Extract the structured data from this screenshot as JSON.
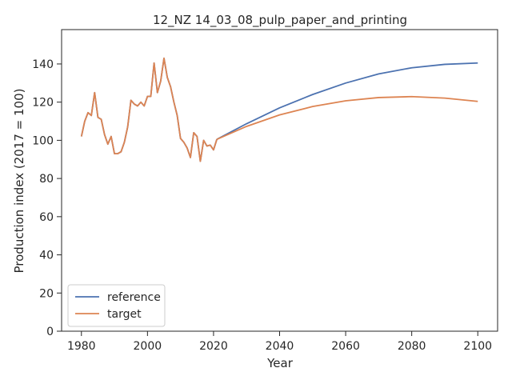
{
  "chart_data": {
    "type": "line",
    "title": "12_NZ 14_03_08_pulp_paper_and_printing",
    "xlabel": "Year",
    "ylabel": "Production index (2017 = 100)",
    "xlim": [
      1974,
      2106
    ],
    "ylim": [
      0,
      158
    ],
    "xticks": [
      1980,
      2000,
      2020,
      2040,
      2060,
      2080,
      2100
    ],
    "yticks": [
      0,
      20,
      40,
      60,
      80,
      100,
      120,
      140
    ],
    "grid": false,
    "legend": "lower-left",
    "historical": {
      "x": [
        1980,
        1981,
        1982,
        1983,
        1984,
        1985,
        1986,
        1987,
        1988,
        1989,
        1990,
        1991,
        1992,
        1993,
        1994,
        1995,
        1996,
        1997,
        1998,
        1999,
        2000,
        2001,
        2002,
        2003,
        2004,
        2005,
        2006,
        2007,
        2008,
        2009,
        2010,
        2011,
        2012,
        2013,
        2014,
        2015,
        2016,
        2017,
        2018,
        2019,
        2020,
        2021
      ],
      "values": [
        102,
        110,
        114.5,
        113,
        125,
        112,
        111,
        103,
        98,
        102,
        93,
        93,
        94,
        99,
        107,
        121,
        119,
        118,
        120,
        118,
        123,
        123,
        140.5,
        125,
        131,
        143,
        133,
        128,
        120,
        113,
        101,
        99,
        96,
        91,
        104,
        102,
        89,
        100,
        97,
        97.5,
        95,
        100.5
      ]
    },
    "series": [
      {
        "name": "reference",
        "color": "#4c72b0",
        "x": [
          2021,
          2030,
          2040,
          2050,
          2060,
          2070,
          2080,
          2090,
          2100
        ],
        "values": [
          100.5,
          108.7,
          117,
          124,
          130,
          134.8,
          138,
          139.8,
          140.5
        ]
      },
      {
        "name": "target",
        "color": "#dd8452",
        "x": [
          2021,
          2030,
          2040,
          2050,
          2060,
          2070,
          2080,
          2090,
          2100
        ],
        "values": [
          100.5,
          107.3,
          113.3,
          117.7,
          120.7,
          122.4,
          122.9,
          122.1,
          120.4
        ]
      }
    ]
  }
}
